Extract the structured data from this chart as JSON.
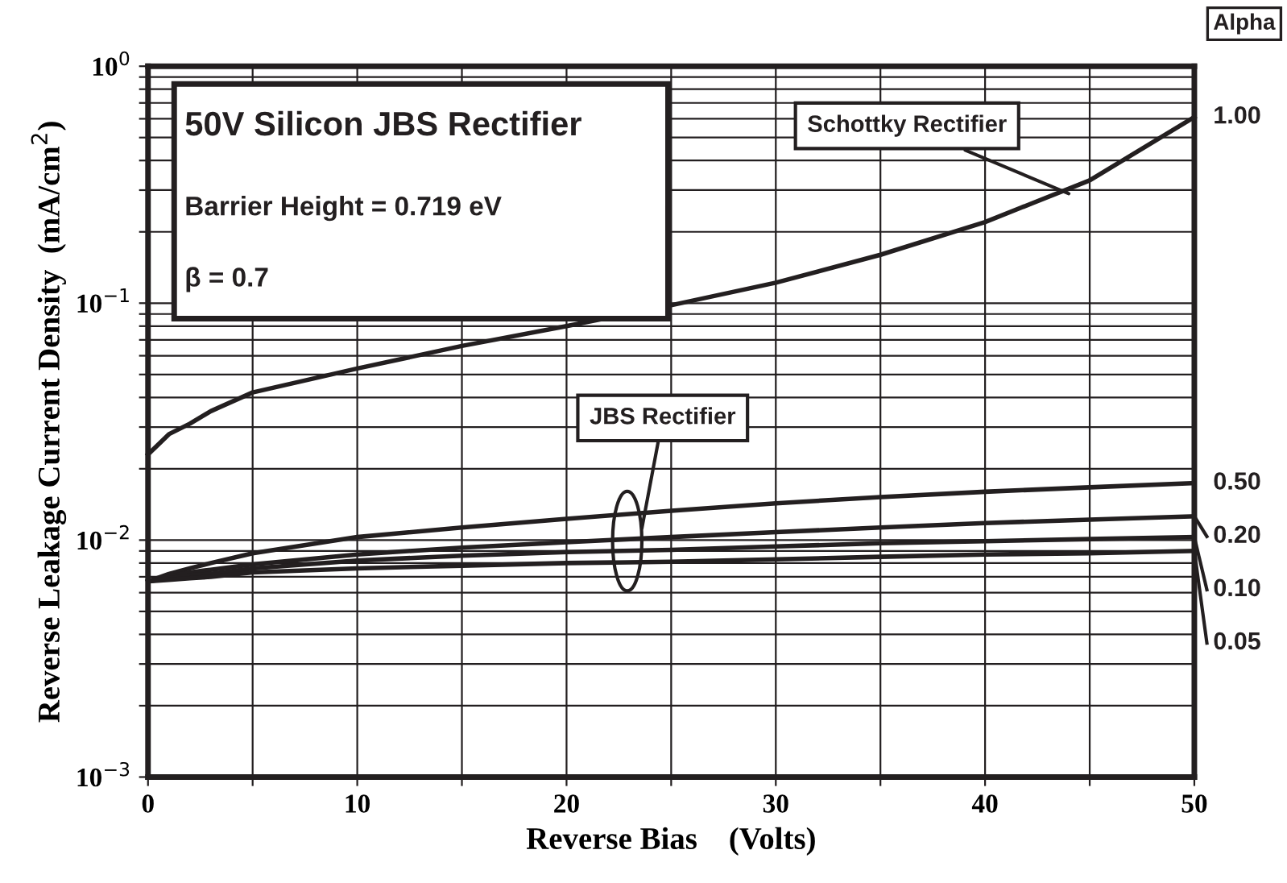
{
  "chart_data": {
    "type": "line",
    "title": "50V Silicon JBS Rectifier",
    "subtitle": "Barrier Height = 0.719 eV",
    "xlabel": "Reverse Bias    (Volts)",
    "ylabel": "Reverse Leakage Current Density  (mA/cm$^{2}$)",
    "legend_title": "Alpha",
    "annotations": [
      "β = 0.7",
      {
        "text": "Schottky Rectifier",
        "x": 44,
        "y": 0.29
      },
      {
        "text": "JBS Rectifier",
        "x": 23.6,
        "y": 0.0112
      }
    ],
    "x": [
      0,
      1,
      2,
      3,
      5,
      10,
      15,
      20,
      25,
      30,
      35,
      40,
      45,
      50
    ],
    "series": [
      {
        "name": "1.00",
        "color": "#231f20",
        "values": [
          0.023,
          0.028,
          0.031,
          0.035,
          0.042,
          0.053,
          0.066,
          0.08,
          0.098,
          0.122,
          0.16,
          0.22,
          0.33,
          0.61
        ]
      },
      {
        "name": "0.50",
        "color": "#231f20",
        "values": [
          0.0067,
          0.0072,
          0.0076,
          0.008,
          0.0088,
          0.0103,
          0.0113,
          0.0123,
          0.0133,
          0.0143,
          0.0152,
          0.016,
          0.0167,
          0.0174
        ]
      },
      {
        "name": "0.20",
        "color": "#231f20",
        "values": [
          0.0067,
          0.007,
          0.0073,
          0.0075,
          0.0079,
          0.0087,
          0.0093,
          0.0098,
          0.0103,
          0.0108,
          0.0113,
          0.0118,
          0.0122,
          0.0126
        ]
      },
      {
        "name": "0.10",
        "color": "#231f20",
        "values": [
          0.0067,
          0.0069,
          0.0071,
          0.0072,
          0.0076,
          0.0082,
          0.0086,
          0.0089,
          0.0091,
          0.0094,
          0.0097,
          0.0099,
          0.0101,
          0.0103
        ]
      },
      {
        "name": "0.05",
        "color": "#231f20",
        "values": [
          0.0067,
          0.0068,
          0.0069,
          0.007,
          0.0073,
          0.0076,
          0.0078,
          0.008,
          0.0081,
          0.0083,
          0.0085,
          0.0087,
          0.0088,
          0.009
        ]
      }
    ],
    "log": "y",
    "xlim": [
      0,
      50
    ],
    "ylim": [
      0.001,
      1
    ],
    "xticks": [
      0,
      {
        "value": 5,
        "label": null
      },
      10,
      {
        "value": 15,
        "label": null
      },
      20,
      {
        "value": 25,
        "label": null
      },
      30,
      {
        "value": 35,
        "label": null
      },
      40,
      {
        "value": 45,
        "label": null
      },
      50
    ],
    "yticks": [
      {
        "value": 0.001,
        "label": "10$^{−3}$"
      },
      {
        "value": 0.002,
        "label": null
      },
      {
        "value": 0.003,
        "label": null
      },
      {
        "value": 0.004,
        "label": null
      },
      {
        "value": 0.005,
        "label": null
      },
      {
        "value": 0.006,
        "label": null
      },
      {
        "value": 0.007,
        "label": null
      },
      {
        "value": 0.008,
        "label": null
      },
      {
        "value": 0.009,
        "label": null
      },
      {
        "value": 0.01,
        "label": "10$^{−2}$"
      },
      {
        "value": 0.02,
        "label": null
      },
      {
        "value": 0.03,
        "label": null
      },
      {
        "value": 0.04,
        "label": null
      },
      {
        "value": 0.05,
        "label": null
      },
      {
        "value": 0.06,
        "label": null
      },
      {
        "value": 0.07,
        "label": null
      },
      {
        "value": 0.08,
        "label": null
      },
      {
        "value": 0.09,
        "label": null
      },
      {
        "value": 0.1,
        "label": "10$^{−1}$"
      },
      {
        "value": 0.2,
        "label": null
      },
      {
        "value": 0.3,
        "label": null
      },
      {
        "value": 0.4,
        "label": null
      },
      {
        "value": 0.5,
        "label": null
      },
      {
        "value": 0.6,
        "label": null
      },
      {
        "value": 0.7,
        "label": null
      },
      {
        "value": 0.8,
        "label": null
      },
      {
        "value": 0.9,
        "label": null
      },
      {
        "value": 1,
        "label": "10$^{0}$"
      }
    ],
    "grid": true,
    "marker": "none",
    "line_style": "solid"
  }
}
